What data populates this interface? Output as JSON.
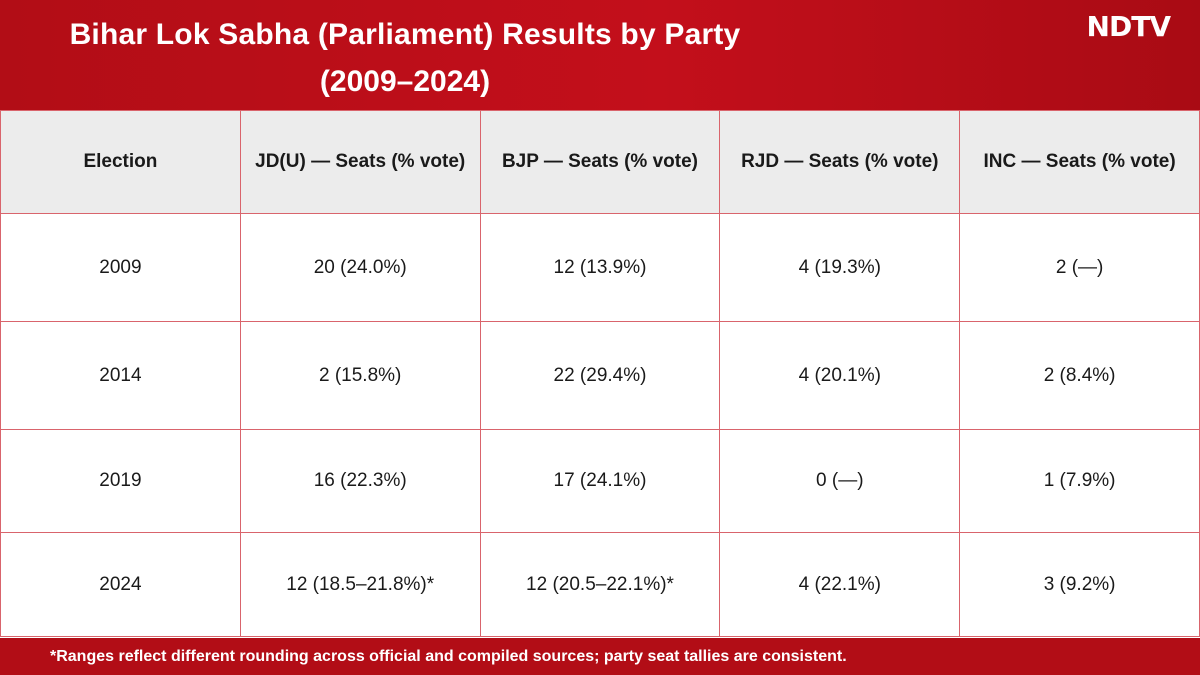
{
  "header": {
    "title_line1": "Bihar Lok Sabha (Parliament) Results by Party",
    "title_line2": "(2009–2024)",
    "logo": "NDTV"
  },
  "colors": {
    "brand_red": "#b20d16",
    "header_bg": "#ececec",
    "grid_line": "#d9646c"
  },
  "table": {
    "columns": [
      "Election",
      "JD(U) — Seats (% vote)",
      "BJP — Seats (% vote)",
      "RJD — Seats (% vote)",
      "INC — Seats (% vote)"
    ],
    "rows": [
      [
        "2009",
        "20 (24.0%)",
        "12 (13.9%)",
        "4 (19.3%)",
        "2 (—)"
      ],
      [
        "2014",
        "2 (15.8%)",
        "22 (29.4%)",
        "4 (20.1%)",
        "2 (8.4%)"
      ],
      [
        "2019",
        "16 (22.3%)",
        "17 (24.1%)",
        "0 (—)",
        "1 (7.9%)"
      ],
      [
        "2024",
        "12 (18.5–21.8%)*",
        "12 (20.5–22.1%)*",
        "4 (22.1%)",
        "3 (9.2%)"
      ]
    ]
  },
  "footer": {
    "note": "*Ranges reflect different rounding across official and compiled sources; party seat tallies are consistent."
  }
}
